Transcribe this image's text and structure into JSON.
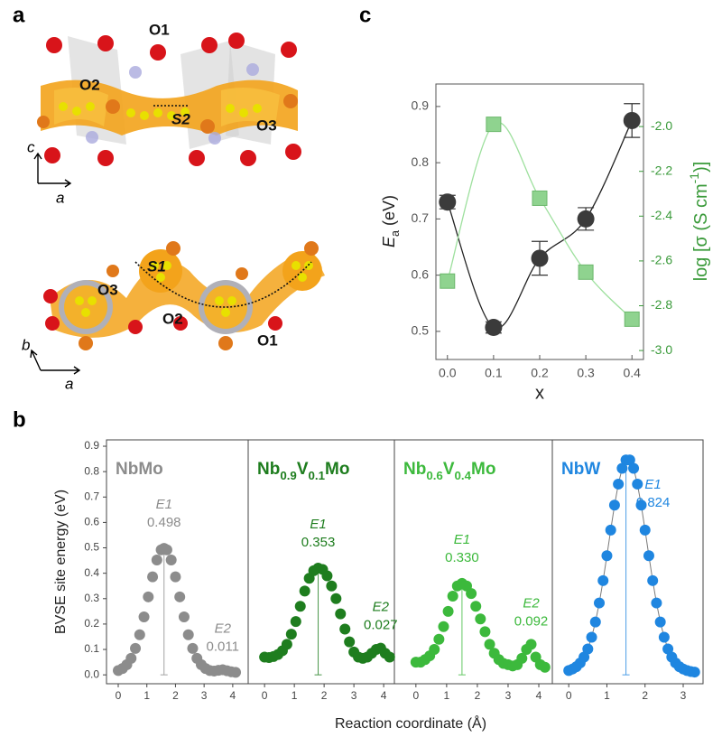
{
  "panel_labels": [
    "a",
    "c",
    "b"
  ],
  "panel_a": {
    "top": [
      "O1",
      "O2",
      "S2",
      "O3"
    ],
    "top_axes": [
      "c",
      "a"
    ],
    "bottom": [
      "S1",
      "O3",
      "O2",
      "O1"
    ],
    "bottom_axes": [
      "b",
      "a"
    ]
  },
  "chart_data": [
    {
      "type": "scatter",
      "x": [
        0,
        0.1,
        0.2,
        0.3,
        0.4
      ],
      "xlim": [
        -0.025,
        0.425
      ],
      "xticks": [
        {
          "value": 0,
          "label": "0.0"
        },
        0.1,
        0.2,
        0.3,
        0.4
      ],
      "x_label": "x",
      "y_label": [
        "E",
        "a",
        " (eV)"
      ],
      "ylim": [
        0.45,
        0.94
      ],
      "yticks": [
        0.5,
        0.6,
        0.7,
        0.8,
        0.9
      ],
      "y2_label": [
        "log [σ (S cm",
        "-1",
        ")]"
      ],
      "y2_color": "#3a9a3a",
      "y2lim": [
        -3.04,
        -1.81
      ],
      "y2ticks": [
        {
          "value": -3,
          "label": "-3.0"
        },
        -2.8,
        -2.6,
        -2.4,
        -2.2,
        {
          "value": -2,
          "label": "-2.0"
        }
      ],
      "series": [
        {
          "color": "#3b3b3b",
          "line_color": "#222222",
          "marker": "circle",
          "values": [
            0.73,
            0.507,
            0.63,
            0.7,
            0.875
          ],
          "errors": [
            0.012,
            0.01,
            0.03,
            0.02,
            0.03
          ]
        },
        {
          "color": "#8fd38f",
          "line_color": "#9ee09e",
          "marker": "square",
          "axis": "y2",
          "values": [
            -2.69,
            -1.99,
            -2.32,
            -2.65,
            -2.86
          ]
        }
      ]
    },
    {
      "type": "facet",
      "y_label": "BVSE site energy (eV)",
      "x_label": "Reaction coordinate (Å)",
      "ylim": [
        -0.035,
        0.925
      ],
      "yticks": [
        {
          "value": 0,
          "label": "0.0"
        },
        0.1,
        0.2,
        0.3,
        0.4,
        0.5,
        0.6,
        0.7,
        0.8,
        0.9
      ],
      "panels": [
        {
          "title": [
            "NbMo"
          ],
          "color": "#8c8c8c",
          "xlim": [
            -0.41,
            4.54
          ],
          "xticks": [
            0,
            1,
            2,
            3,
            4
          ],
          "x": [
            0,
            0.15,
            0.3,
            0.45,
            0.6,
            0.75,
            0.9,
            1.05,
            1.2,
            1.35,
            1.5,
            1.6,
            1.7,
            1.85,
            2.0,
            2.15,
            2.3,
            2.45,
            2.6,
            2.75,
            2.9,
            3.05,
            3.2,
            3.35,
            3.5,
            3.65,
            3.8,
            3.95,
            4.1
          ],
          "values": [
            0.017,
            0.025,
            0.04,
            0.065,
            0.104,
            0.158,
            0.228,
            0.307,
            0.386,
            0.452,
            0.492,
            0.498,
            0.492,
            0.452,
            0.386,
            0.307,
            0.228,
            0.158,
            0.104,
            0.065,
            0.04,
            0.025,
            0.017,
            0.015,
            0.018,
            0.02,
            0.016,
            0.012,
            0.01
          ],
          "annotations": [
            {
              "text": "E1",
              "value": 0.498
            },
            {
              "text": "E2",
              "value": 0.011
            }
          ]
        },
        {
          "title": [
            "Nb",
            "0.9",
            "V",
            "0.1",
            "Mo"
          ],
          "color": "#1e7d1e",
          "xlim": [
            -0.55,
            4.36
          ],
          "xticks": [
            0,
            1,
            2,
            3,
            4
          ],
          "x": [
            0,
            0.15,
            0.3,
            0.45,
            0.6,
            0.75,
            0.9,
            1.05,
            1.2,
            1.35,
            1.5,
            1.65,
            1.8,
            1.95,
            2.1,
            2.25,
            2.4,
            2.55,
            2.7,
            2.85,
            3.0,
            3.15,
            3.3,
            3.45,
            3.6,
            3.75,
            3.9,
            4.05,
            4.2
          ],
          "values": [
            0.07,
            0.068,
            0.072,
            0.08,
            0.095,
            0.12,
            0.16,
            0.21,
            0.27,
            0.33,
            0.38,
            0.41,
            0.42,
            0.415,
            0.39,
            0.35,
            0.3,
            0.24,
            0.18,
            0.13,
            0.09,
            0.07,
            0.065,
            0.07,
            0.085,
            0.1,
            0.105,
            0.085,
            0.07
          ],
          "annotations": [
            {
              "text": "E1",
              "value": 0.353
            },
            {
              "text": "E2",
              "value": 0.027
            }
          ]
        },
        {
          "title": [
            "Nb",
            "0.6",
            "V",
            "0.4",
            "Mo"
          ],
          "color": "#3cb93c",
          "xlim": [
            -0.7,
            4.44
          ],
          "xticks": [
            0,
            1,
            2,
            3,
            4
          ],
          "x": [
            0,
            0.15,
            0.3,
            0.45,
            0.6,
            0.75,
            0.9,
            1.05,
            1.2,
            1.35,
            1.5,
            1.65,
            1.8,
            1.95,
            2.1,
            2.25,
            2.4,
            2.55,
            2.7,
            2.85,
            3.0,
            3.15,
            3.3,
            3.45,
            3.6,
            3.75,
            3.9,
            4.05,
            4.2
          ],
          "values": [
            0.05,
            0.05,
            0.06,
            0.075,
            0.1,
            0.14,
            0.19,
            0.25,
            0.31,
            0.35,
            0.36,
            0.35,
            0.32,
            0.27,
            0.22,
            0.17,
            0.12,
            0.085,
            0.06,
            0.045,
            0.04,
            0.035,
            0.04,
            0.065,
            0.1,
            0.12,
            0.07,
            0.04,
            0.03
          ],
          "annotations": [
            {
              "text": "E1",
              "value": {
                "value": 0.33,
                "label": "0.330"
              }
            },
            {
              "text": "E2",
              "value": 0.092
            }
          ]
        },
        {
          "title": [
            "NbW"
          ],
          "color": "#1f86e0",
          "line": true,
          "line_color": "#7a7a7a",
          "xlim": [
            -0.43,
            3.52
          ],
          "xticks": [
            0,
            1,
            2,
            3
          ],
          "x": [
            0,
            0.1,
            0.2,
            0.3,
            0.4,
            0.5,
            0.6,
            0.7,
            0.8,
            0.9,
            1.0,
            1.1,
            1.2,
            1.3,
            1.4,
            1.5,
            1.6,
            1.7,
            1.8,
            1.9,
            2.0,
            2.1,
            2.2,
            2.3,
            2.4,
            2.5,
            2.6,
            2.7,
            2.8,
            2.9,
            3.0,
            3.1,
            3.2,
            3.3
          ],
          "values": [
            0.017,
            0.023,
            0.032,
            0.047,
            0.07,
            0.102,
            0.148,
            0.208,
            0.283,
            0.371,
            0.469,
            0.57,
            0.668,
            0.751,
            0.813,
            0.846,
            0.846,
            0.813,
            0.751,
            0.668,
            0.57,
            0.469,
            0.371,
            0.283,
            0.208,
            0.148,
            0.102,
            0.07,
            0.047,
            0.032,
            0.023,
            0.017,
            0.013,
            0.011
          ],
          "annotations": [
            {
              "text": "E1",
              "value": 0.824
            }
          ]
        }
      ]
    }
  ]
}
